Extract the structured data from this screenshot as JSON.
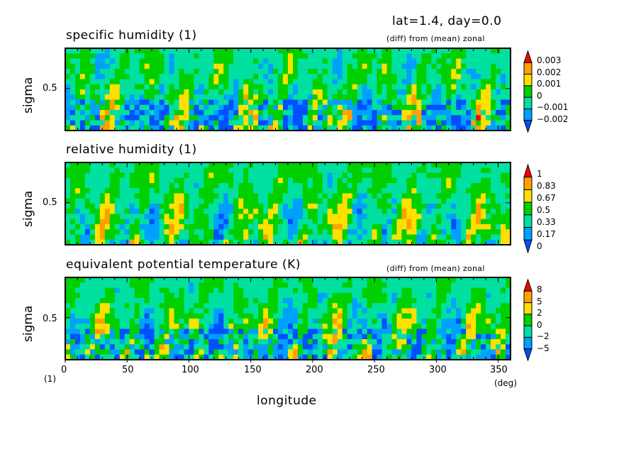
{
  "header": {
    "title": "lat=1.4, day=0.0"
  },
  "chart_data": [
    {
      "type": "heatmap",
      "title": "specific humidity (1)",
      "note": "(diff) from (mean) zonal",
      "ylabel": "sigma",
      "yticks": [
        "0.5"
      ],
      "colorbar_levels": [
        "0.003",
        "0.002",
        "0.001",
        "0",
        "−0.001",
        "−0.002"
      ],
      "colors": [
        "#0050ff",
        "#00a0ff",
        "#00e0a0",
        "#00d000",
        "#ffe000",
        "#ffa000",
        "#ff0000"
      ],
      "seed": 7
    },
    {
      "type": "heatmap",
      "title": "relative humidity (1)",
      "note": "",
      "ylabel": "sigma",
      "yticks": [
        "0.5"
      ],
      "colorbar_levels": [
        "1",
        "0.83",
        "0.67",
        "0.5",
        "0.33",
        "0.17",
        "0"
      ],
      "colors": [
        "#0050ff",
        "#00a0ff",
        "#00e0a0",
        "#00d000",
        "#ffe000",
        "#ffa000",
        "#ff0000"
      ],
      "seed": 19
    },
    {
      "type": "heatmap",
      "title": "equivalent potential temperature (K)",
      "note": "(diff) from (mean) zonal",
      "ylabel": "sigma",
      "yticks": [
        "0.5"
      ],
      "colorbar_levels": [
        "8",
        "5",
        "2",
        "0",
        "−2",
        "−5"
      ],
      "colors": [
        "#0050ff",
        "#00a0ff",
        "#00e0a0",
        "#00d000",
        "#ffe000",
        "#ffa000",
        "#ff0000"
      ],
      "seed": 31
    }
  ],
  "xaxis": {
    "label": "longitude",
    "ticks": [
      "0",
      "50",
      "100",
      "150",
      "200",
      "250",
      "300",
      "350"
    ],
    "tick_values": [
      0,
      50,
      100,
      150,
      200,
      250,
      300,
      350
    ],
    "range": [
      0,
      360
    ],
    "unit": "(deg)",
    "corner_unit": "(1)"
  }
}
